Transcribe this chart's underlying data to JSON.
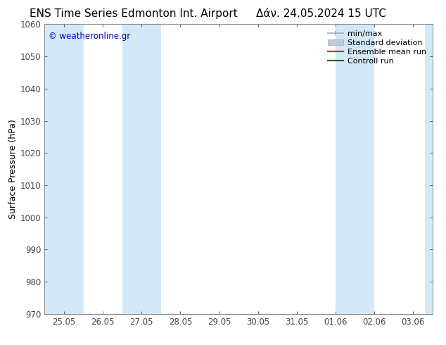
{
  "title_left": "ENS Time Series Edmonton Int. Airport",
  "title_right": "Δάν. 24.05.2024 15 UTC",
  "ylabel": "Surface Pressure (hPa)",
  "ylim": [
    970,
    1060
  ],
  "yticks": [
    970,
    980,
    990,
    1000,
    1010,
    1020,
    1030,
    1040,
    1050,
    1060
  ],
  "xtick_labels": [
    "25.05",
    "26.05",
    "27.05",
    "28.05",
    "29.05",
    "30.05",
    "31.05",
    "01.06",
    "02.06",
    "03.06"
  ],
  "shaded_bands_xdata": [
    [
      -0.5,
      0.5
    ],
    [
      1.5,
      2.5
    ],
    [
      7.0,
      8.0
    ],
    [
      9.3,
      9.9
    ]
  ],
  "band_color": "#d4e8f8",
  "background_color": "#ffffff",
  "watermark": "© weatheronline.gr",
  "watermark_color": "#0000cc",
  "legend_items": [
    {
      "label": "min/max",
      "color": "#aaaaaa",
      "lw": 1.2,
      "style": "minmax"
    },
    {
      "label": "Standard deviation",
      "color": "#bbccdd",
      "lw": 4,
      "style": "std"
    },
    {
      "label": "Ensemble mean run",
      "color": "#ff0000",
      "lw": 1.5,
      "style": "line"
    },
    {
      "label": "Controll run",
      "color": "#006600",
      "lw": 1.5,
      "style": "line"
    }
  ],
  "spine_color": "#888888",
  "tick_color": "#444444",
  "title_fontsize": 11,
  "axis_label_fontsize": 9,
  "tick_fontsize": 8.5,
  "watermark_fontsize": 8.5,
  "legend_fontsize": 8
}
